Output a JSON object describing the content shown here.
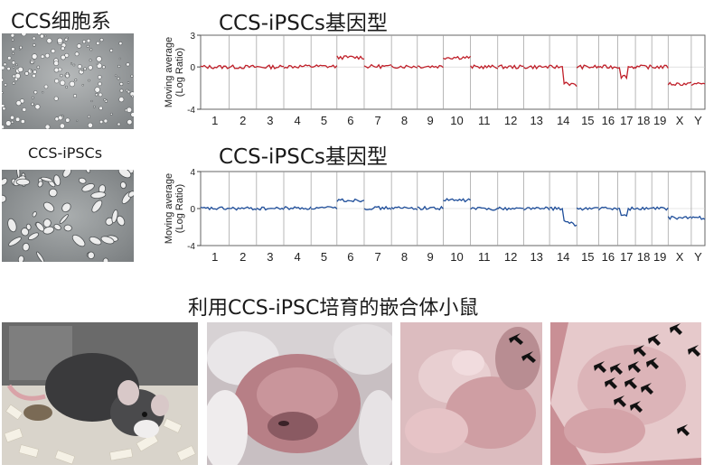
{
  "labels": {
    "ccs_cell_line": "CCS细胞系",
    "genotype_1": "CCS-iPSCs基因型",
    "ccs_ipscs": "CCS-iPSCs",
    "genotype_2": "CCS-iPSCs基因型",
    "chimera_mice": "利用CCS-iPSC培育的嵌合体小鼠"
  },
  "colors": {
    "series_1": "#c0202a",
    "series_2": "#1f4e9a",
    "axis": "#555555",
    "divider": "#9a9a9a"
  },
  "chart_data": [
    {
      "type": "line",
      "ylabel": "Moving average\n(Log Ratio)",
      "ylim": [
        -4,
        3
      ],
      "yticks": [
        "3",
        "0",
        "-4"
      ],
      "categories": [
        "1",
        "2",
        "3",
        "4",
        "5",
        "6",
        "7",
        "8",
        "9",
        "10",
        "11",
        "12",
        "13",
        "14",
        "15",
        "16",
        "17",
        "18",
        "19",
        "X",
        "Y"
      ],
      "grid": false,
      "series": [
        {
          "color": "#c0202a",
          "values": [
            0.0,
            0.0,
            0.0,
            0.05,
            0.05,
            0.9,
            0.05,
            0.05,
            0.05,
            0.9,
            0.0,
            0.0,
            0.0,
            -1.0,
            0.0,
            0.0,
            -0.9,
            0.0,
            0.0,
            -1.6,
            -1.6
          ]
        }
      ]
    },
    {
      "type": "line",
      "ylabel": "Moving average\n(Log Ratio)",
      "ylim": [
        -4,
        4
      ],
      "yticks": [
        "4",
        "0",
        "-4"
      ],
      "categories": [
        "1",
        "2",
        "3",
        "4",
        "5",
        "6",
        "7",
        "8",
        "9",
        "10",
        "11",
        "12",
        "13",
        "14",
        "15",
        "16",
        "17",
        "18",
        "19",
        "X",
        "Y"
      ],
      "grid": false,
      "series": [
        {
          "color": "#1f4e9a",
          "values": [
            0.0,
            0.0,
            0.0,
            0.05,
            0.05,
            0.9,
            0.05,
            0.05,
            0.05,
            0.9,
            0.0,
            0.0,
            0.0,
            -1.0,
            0.0,
            0.0,
            -0.8,
            0.0,
            0.0,
            -1.0,
            -1.0
          ]
        }
      ]
    }
  ]
}
